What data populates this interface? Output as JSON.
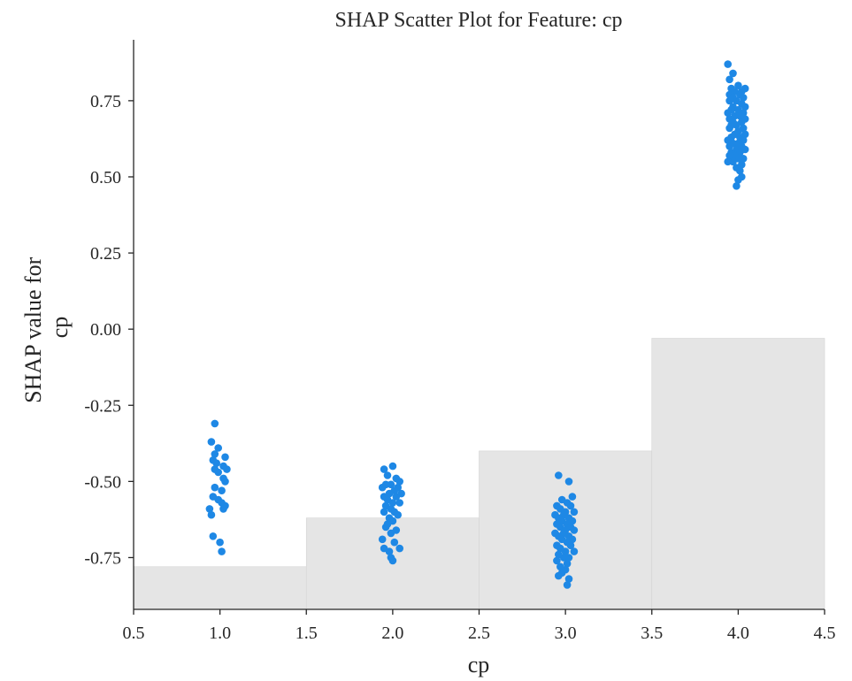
{
  "chart_data": {
    "type": "scatter",
    "title": "SHAP Scatter Plot for Feature: cp",
    "xlabel": "cp",
    "ylabel_lines": [
      "SHAP value for",
      "cp"
    ],
    "xlim": [
      0.5,
      4.5
    ],
    "ylim": [
      -0.92,
      0.95
    ],
    "x_ticks": [
      0.5,
      1.0,
      1.5,
      2.0,
      2.5,
      3.0,
      3.5,
      4.0,
      4.5
    ],
    "x_tick_labels": [
      "0.5",
      "1.0",
      "1.5",
      "2.0",
      "2.5",
      "3.0",
      "3.5",
      "4.0",
      "4.5"
    ],
    "y_ticks": [
      0.75,
      0.5,
      0.25,
      0.0,
      -0.25,
      -0.5,
      -0.75
    ],
    "y_tick_labels": [
      "0.75",
      "0.50",
      "0.25",
      "0.00",
      "-0.25",
      "-0.50",
      "-0.75"
    ],
    "grid": false,
    "point_color": "#1e88e5",
    "histogram_color": "#e5e5e5",
    "background_histogram": [
      {
        "x_range": [
          0.5,
          1.5
        ],
        "top": -0.78
      },
      {
        "x_range": [
          1.5,
          2.5
        ],
        "top": -0.62
      },
      {
        "x_range": [
          2.5,
          3.5
        ],
        "top": -0.4
      },
      {
        "x_range": [
          3.5,
          4.5
        ],
        "top": -0.03
      }
    ],
    "series": [
      {
        "points": [
          [
            0.97,
            -0.31
          ],
          [
            0.95,
            -0.37
          ],
          [
            0.99,
            -0.39
          ],
          [
            0.97,
            -0.41
          ],
          [
            1.03,
            -0.42
          ],
          [
            0.96,
            -0.43
          ],
          [
            0.98,
            -0.44
          ],
          [
            1.02,
            -0.45
          ],
          [
            0.97,
            -0.46
          ],
          [
            1.04,
            -0.46
          ],
          [
            0.99,
            -0.47
          ],
          [
            1.02,
            -0.49
          ],
          [
            1.03,
            -0.5
          ],
          [
            0.97,
            -0.52
          ],
          [
            1.01,
            -0.53
          ],
          [
            0.96,
            -0.55
          ],
          [
            0.99,
            -0.56
          ],
          [
            1.01,
            -0.57
          ],
          [
            1.03,
            -0.58
          ],
          [
            1.02,
            -0.59
          ],
          [
            0.94,
            -0.59
          ],
          [
            0.95,
            -0.61
          ],
          [
            0.96,
            -0.68
          ],
          [
            1.0,
            -0.7
          ],
          [
            1.01,
            -0.73
          ],
          [
            1.95,
            -0.46
          ],
          [
            2.0,
            -0.45
          ],
          [
            1.97,
            -0.48
          ],
          [
            2.02,
            -0.49
          ],
          [
            2.04,
            -0.5
          ],
          [
            1.96,
            -0.51
          ],
          [
            1.99,
            -0.51
          ],
          [
            2.03,
            -0.52
          ],
          [
            1.94,
            -0.52
          ],
          [
            2.01,
            -0.53
          ],
          [
            1.98,
            -0.54
          ],
          [
            2.05,
            -0.54
          ],
          [
            1.95,
            -0.55
          ],
          [
            2.02,
            -0.55
          ],
          [
            1.97,
            -0.56
          ],
          [
            2.0,
            -0.57
          ],
          [
            2.04,
            -0.57
          ],
          [
            1.96,
            -0.58
          ],
          [
            1.99,
            -0.59
          ],
          [
            2.01,
            -0.6
          ],
          [
            1.95,
            -0.6
          ],
          [
            2.03,
            -0.61
          ],
          [
            1.98,
            -0.62
          ],
          [
            2.0,
            -0.63
          ],
          [
            1.97,
            -0.64
          ],
          [
            1.96,
            -0.65
          ],
          [
            2.02,
            -0.66
          ],
          [
            1.99,
            -0.67
          ],
          [
            1.94,
            -0.69
          ],
          [
            2.01,
            -0.7
          ],
          [
            1.95,
            -0.72
          ],
          [
            2.04,
            -0.72
          ],
          [
            1.98,
            -0.73
          ],
          [
            1.99,
            -0.75
          ],
          [
            2.0,
            -0.76
          ],
          [
            2.96,
            -0.48
          ],
          [
            3.02,
            -0.5
          ],
          [
            3.04,
            -0.55
          ],
          [
            2.98,
            -0.56
          ],
          [
            3.01,
            -0.57
          ],
          [
            2.95,
            -0.58
          ],
          [
            3.03,
            -0.58
          ],
          [
            2.97,
            -0.59
          ],
          [
            3.0,
            -0.6
          ],
          [
            3.05,
            -0.6
          ],
          [
            2.94,
            -0.61
          ],
          [
            2.99,
            -0.61
          ],
          [
            3.02,
            -0.62
          ],
          [
            2.96,
            -0.62
          ],
          [
            3.04,
            -0.63
          ],
          [
            2.98,
            -0.63
          ],
          [
            3.01,
            -0.64
          ],
          [
            2.95,
            -0.64
          ],
          [
            3.03,
            -0.65
          ],
          [
            2.97,
            -0.65
          ],
          [
            3.0,
            -0.66
          ],
          [
            3.05,
            -0.66
          ],
          [
            2.94,
            -0.67
          ],
          [
            2.99,
            -0.67
          ],
          [
            3.02,
            -0.68
          ],
          [
            2.96,
            -0.68
          ],
          [
            3.04,
            -0.69
          ],
          [
            2.98,
            -0.69
          ],
          [
            3.01,
            -0.7
          ],
          [
            2.95,
            -0.71
          ],
          [
            3.03,
            -0.71
          ],
          [
            2.97,
            -0.72
          ],
          [
            3.0,
            -0.73
          ],
          [
            3.05,
            -0.73
          ],
          [
            2.96,
            -0.74
          ],
          [
            2.99,
            -0.75
          ],
          [
            3.02,
            -0.75
          ],
          [
            2.95,
            -0.76
          ],
          [
            3.01,
            -0.77
          ],
          [
            2.97,
            -0.78
          ],
          [
            3.0,
            -0.79
          ],
          [
            2.98,
            -0.8
          ],
          [
            2.96,
            -0.81
          ],
          [
            3.02,
            -0.82
          ],
          [
            3.01,
            -0.84
          ],
          [
            3.94,
            0.87
          ],
          [
            3.97,
            0.84
          ],
          [
            3.95,
            0.82
          ],
          [
            4.0,
            0.8
          ],
          [
            3.96,
            0.79
          ],
          [
            4.04,
            0.79
          ],
          [
            3.98,
            0.78
          ],
          [
            4.02,
            0.78
          ],
          [
            3.95,
            0.77
          ],
          [
            4.01,
            0.77
          ],
          [
            3.97,
            0.76
          ],
          [
            4.03,
            0.76
          ],
          [
            3.99,
            0.75
          ],
          [
            3.95,
            0.75
          ],
          [
            4.02,
            0.74
          ],
          [
            3.97,
            0.73
          ],
          [
            4.04,
            0.73
          ],
          [
            3.96,
            0.72
          ],
          [
            4.0,
            0.72
          ],
          [
            3.94,
            0.71
          ],
          [
            4.03,
            0.71
          ],
          [
            3.98,
            0.7
          ],
          [
            4.01,
            0.7
          ],
          [
            3.95,
            0.69
          ],
          [
            4.04,
            0.69
          ],
          [
            3.97,
            0.68
          ],
          [
            4.02,
            0.68
          ],
          [
            3.96,
            0.67
          ],
          [
            3.99,
            0.67
          ],
          [
            4.03,
            0.66
          ],
          [
            3.95,
            0.66
          ],
          [
            4.0,
            0.65
          ],
          [
            3.98,
            0.64
          ],
          [
            4.04,
            0.64
          ],
          [
            3.96,
            0.63
          ],
          [
            4.01,
            0.63
          ],
          [
            3.94,
            0.62
          ],
          [
            4.03,
            0.62
          ],
          [
            3.97,
            0.61
          ],
          [
            4.0,
            0.61
          ],
          [
            3.95,
            0.6
          ],
          [
            4.02,
            0.6
          ],
          [
            3.99,
            0.59
          ],
          [
            4.04,
            0.59
          ],
          [
            3.96,
            0.58
          ],
          [
            4.01,
            0.58
          ],
          [
            3.98,
            0.57
          ],
          [
            3.95,
            0.57
          ],
          [
            4.03,
            0.56
          ],
          [
            4.0,
            0.56
          ],
          [
            3.97,
            0.55
          ],
          [
            3.94,
            0.55
          ],
          [
            4.02,
            0.54
          ],
          [
            3.99,
            0.53
          ],
          [
            4.01,
            0.52
          ],
          [
            4.02,
            0.5
          ],
          [
            4.0,
            0.49
          ],
          [
            3.99,
            0.47
          ]
        ]
      }
    ]
  }
}
